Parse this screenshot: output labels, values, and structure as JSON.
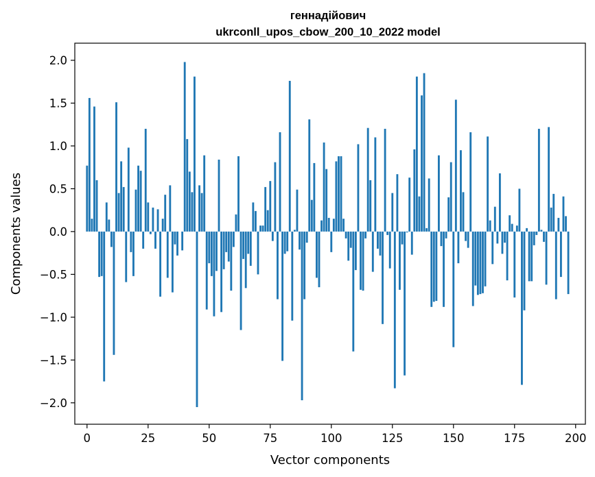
{
  "chart_data": {
    "type": "bar",
    "title": "геннадійович",
    "subtitle": "ukrconll_upos_cbow_200_10_2022 model",
    "xlabel": "Vector components",
    "ylabel": "Components values",
    "xlim": [
      -5,
      204
    ],
    "ylim": [
      -2.25,
      2.2
    ],
    "xticks": [
      0,
      25,
      50,
      75,
      100,
      125,
      150,
      175,
      200
    ],
    "xtick_labels": [
      "0",
      "25",
      "50",
      "75",
      "100",
      "125",
      "150",
      "175",
      "200"
    ],
    "yticks": [
      -2.0,
      -1.5,
      -1.0,
      -0.5,
      0.0,
      0.5,
      1.0,
      1.5,
      2.0
    ],
    "ytick_labels": [
      "−2.0",
      "−1.5",
      "−1.0",
      "−0.5",
      "0.0",
      "0.5",
      "1.0",
      "1.5",
      "2.0"
    ],
    "grid": false,
    "bar_color": "#1f77b4",
    "values": [
      0.77,
      1.56,
      0.15,
      1.46,
      0.6,
      -0.53,
      -0.52,
      -1.75,
      0.34,
      0.14,
      -0.18,
      -1.44,
      1.51,
      0.45,
      0.82,
      0.52,
      -0.59,
      0.98,
      -0.24,
      -0.52,
      0.49,
      0.77,
      0.71,
      -0.2,
      1.2,
      0.34,
      -0.03,
      0.28,
      -0.2,
      0.26,
      -0.76,
      0.15,
      0.43,
      -0.54,
      0.54,
      -0.71,
      -0.15,
      -0.28,
      0.0,
      -0.22,
      1.98,
      1.08,
      0.7,
      0.46,
      1.81,
      -2.05,
      0.54,
      0.45,
      0.89,
      -0.91,
      -0.37,
      -0.52,
      -0.99,
      -0.46,
      0.84,
      -0.94,
      -0.44,
      -0.24,
      -0.35,
      -0.69,
      -0.18,
      0.2,
      0.88,
      -1.15,
      -0.32,
      -0.66,
      -0.26,
      -0.4,
      0.34,
      0.24,
      -0.5,
      0.07,
      0.07,
      0.52,
      0.25,
      0.59,
      -0.11,
      0.81,
      -0.79,
      1.16,
      -1.51,
      -0.26,
      -0.23,
      1.76,
      -1.04,
      0.02,
      0.49,
      -0.21,
      -1.97,
      -0.79,
      -0.13,
      1.31,
      0.37,
      0.8,
      -0.54,
      -0.65,
      0.13,
      1.04,
      0.73,
      0.16,
      -0.24,
      0.15,
      0.82,
      0.88,
      0.88,
      0.15,
      -0.08,
      -0.34,
      -0.19,
      -1.4,
      -0.45,
      1.02,
      -0.68,
      -0.69,
      -0.08,
      1.21,
      0.6,
      -0.47,
      1.1,
      -0.2,
      -0.28,
      -1.08,
      1.2,
      -0.04,
      -0.43,
      0.45,
      -1.83,
      0.67,
      -0.68,
      -0.15,
      -1.68,
      -0.01,
      0.63,
      -0.27,
      0.96,
      1.81,
      0.41,
      1.59,
      1.85,
      0.04,
      0.62,
      -0.88,
      -0.82,
      -0.81,
      0.89,
      -0.17,
      -0.88,
      -0.08,
      0.4,
      0.81,
      -1.35,
      1.54,
      -0.37,
      0.95,
      0.46,
      -0.11,
      -0.19,
      1.16,
      -0.87,
      -0.63,
      -0.74,
      -0.73,
      -0.72,
      -0.64,
      1.11,
      0.13,
      -0.38,
      0.29,
      -0.14,
      0.68,
      -0.26,
      -0.13,
      -0.57,
      0.19,
      0.09,
      -0.77,
      0.07,
      0.5,
      -1.79,
      -0.92,
      0.04,
      -0.58,
      -0.58,
      -0.16,
      -0.04,
      1.2,
      0.02,
      -0.12,
      -0.62,
      1.22,
      0.28,
      0.44,
      -0.79,
      0.16,
      -0.53,
      0.41,
      0.18,
      -0.73
    ]
  }
}
